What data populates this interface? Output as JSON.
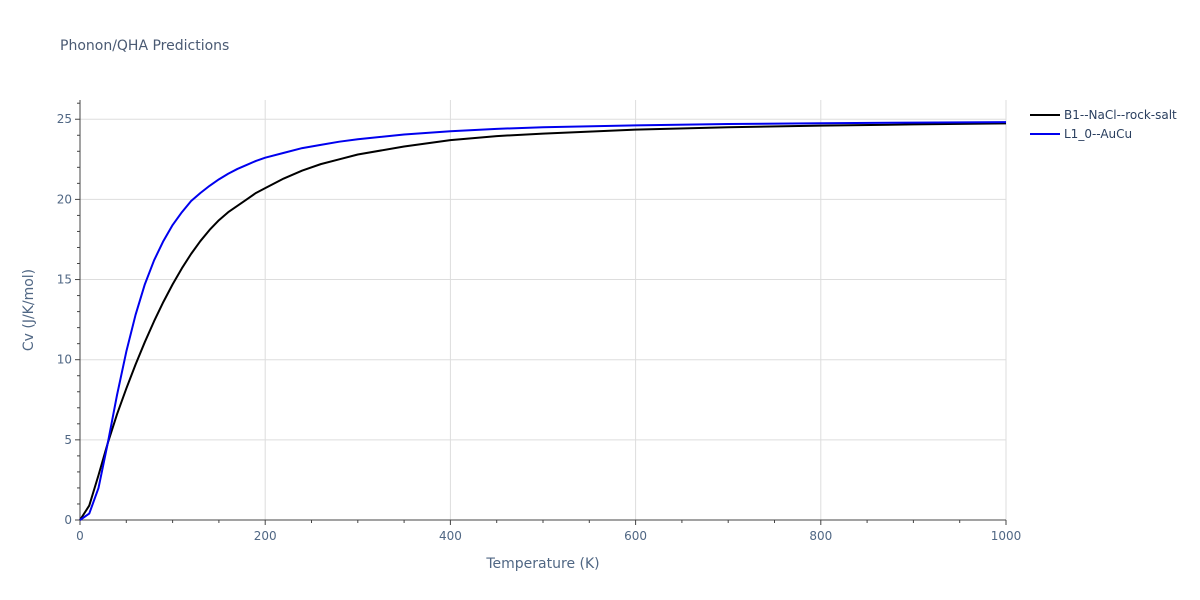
{
  "chart_data": {
    "type": "line",
    "title": "Phonon/QHA Predictions",
    "xlabel": "Temperature (K)",
    "ylabel": "Cv (J/K/mol)",
    "xlim": [
      0,
      1000
    ],
    "ylim": [
      0,
      26.2
    ],
    "x_ticks": [
      0,
      200,
      400,
      600,
      800,
      1000
    ],
    "y_ticks": [
      0,
      5,
      10,
      15,
      20,
      25
    ],
    "x_tick_labels": [
      "0",
      "200",
      "400",
      "600",
      "800",
      "1000"
    ],
    "y_tick_labels": [
      "0",
      "5",
      "10",
      "15",
      "20",
      "25"
    ],
    "grid": true,
    "legend_position": "top-right",
    "series": [
      {
        "name": "B1--NaCl--rock-salt",
        "color": "#000000",
        "x": [
          0,
          10,
          20,
          30,
          40,
          50,
          60,
          70,
          80,
          90,
          100,
          110,
          120,
          130,
          140,
          150,
          160,
          170,
          180,
          190,
          200,
          220,
          240,
          260,
          280,
          300,
          350,
          400,
          450,
          500,
          600,
          700,
          800,
          900,
          1000
        ],
        "y": [
          0,
          0.9,
          2.8,
          4.8,
          6.6,
          8.2,
          9.7,
          11.1,
          12.4,
          13.6,
          14.7,
          15.7,
          16.6,
          17.4,
          18.1,
          18.7,
          19.2,
          19.6,
          20.0,
          20.4,
          20.7,
          21.3,
          21.8,
          22.2,
          22.5,
          22.8,
          23.3,
          23.7,
          23.95,
          24.1,
          24.35,
          24.5,
          24.6,
          24.68,
          24.74
        ]
      },
      {
        "name": "L1_0--AuCu",
        "color": "#0000ee",
        "x": [
          0,
          10,
          20,
          30,
          40,
          50,
          60,
          70,
          80,
          90,
          100,
          110,
          120,
          130,
          140,
          150,
          160,
          170,
          180,
          190,
          200,
          220,
          240,
          260,
          280,
          300,
          350,
          400,
          450,
          500,
          600,
          700,
          800,
          900,
          1000
        ],
        "y": [
          0,
          0.4,
          2.0,
          4.8,
          7.8,
          10.5,
          12.8,
          14.7,
          16.2,
          17.4,
          18.4,
          19.2,
          19.9,
          20.4,
          20.85,
          21.25,
          21.6,
          21.9,
          22.15,
          22.4,
          22.6,
          22.9,
          23.2,
          23.4,
          23.6,
          23.75,
          24.05,
          24.25,
          24.4,
          24.5,
          24.62,
          24.7,
          24.75,
          24.79,
          24.82
        ]
      }
    ]
  }
}
